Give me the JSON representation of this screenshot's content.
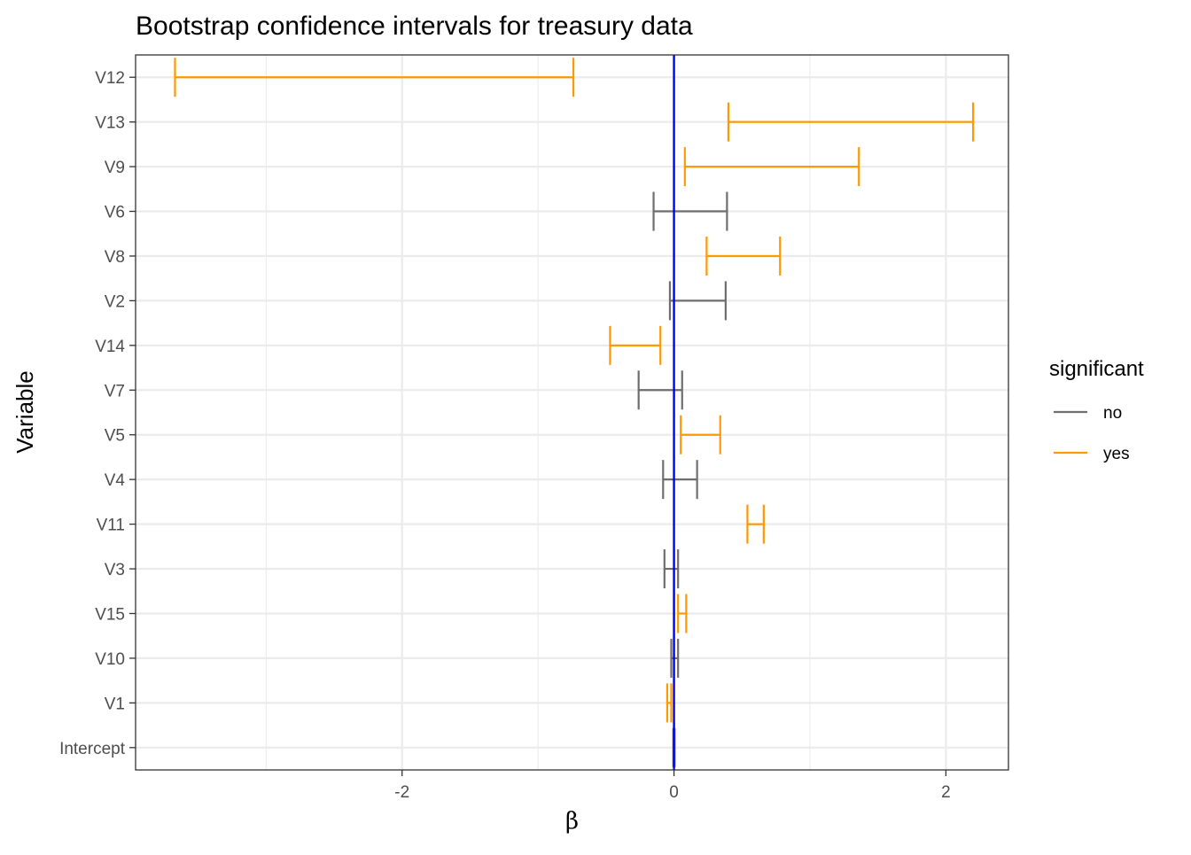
{
  "chart_data": {
    "type": "errorbar",
    "title": "Bootstrap confidence intervals for treasury data",
    "xlabel": "β",
    "ylabel": "Variable",
    "xlim": [
      -3.96,
      2.46
    ],
    "x_ticks": [
      -2,
      0,
      2
    ],
    "x_tick_labels": [
      "-2",
      "0",
      "2"
    ],
    "x_minor_ticks": [
      -3,
      -1,
      1
    ],
    "grid": true,
    "reference_line": {
      "x": 0,
      "color": "#0000ff"
    },
    "legend": {
      "title": "significant",
      "position": "right",
      "entries": [
        {
          "label": "no",
          "color": "#6e6e6e"
        },
        {
          "label": "yes",
          "color": "#ff9900"
        }
      ]
    },
    "series": [
      {
        "name": "V12",
        "lower": -3.67,
        "upper": -0.74,
        "significant": "yes"
      },
      {
        "name": "V13",
        "lower": 0.4,
        "upper": 2.2,
        "significant": "yes"
      },
      {
        "name": "V9",
        "lower": 0.08,
        "upper": 1.36,
        "significant": "yes"
      },
      {
        "name": "V6",
        "lower": -0.15,
        "upper": 0.39,
        "significant": "no"
      },
      {
        "name": "V8",
        "lower": 0.24,
        "upper": 0.78,
        "significant": "yes"
      },
      {
        "name": "V2",
        "lower": -0.03,
        "upper": 0.38,
        "significant": "no"
      },
      {
        "name": "V14",
        "lower": -0.47,
        "upper": -0.1,
        "significant": "yes"
      },
      {
        "name": "V7",
        "lower": -0.26,
        "upper": 0.06,
        "significant": "no"
      },
      {
        "name": "V5",
        "lower": 0.05,
        "upper": 0.34,
        "significant": "yes"
      },
      {
        "name": "V4",
        "lower": -0.08,
        "upper": 0.17,
        "significant": "no"
      },
      {
        "name": "V11",
        "lower": 0.54,
        "upper": 0.66,
        "significant": "yes"
      },
      {
        "name": "V3",
        "lower": -0.07,
        "upper": 0.03,
        "significant": "no"
      },
      {
        "name": "V15",
        "lower": 0.03,
        "upper": 0.09,
        "significant": "yes"
      },
      {
        "name": "V10",
        "lower": -0.02,
        "upper": 0.03,
        "significant": "no"
      },
      {
        "name": "V1",
        "lower": -0.05,
        "upper": -0.02,
        "significant": "yes"
      },
      {
        "name": "Intercept",
        "lower": -0.005,
        "upper": 0.005,
        "significant": "no"
      }
    ]
  }
}
